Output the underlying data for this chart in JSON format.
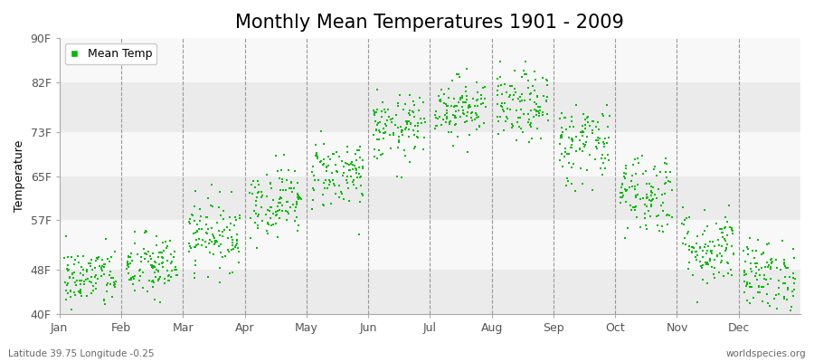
{
  "title": "Monthly Mean Temperatures 1901 - 2009",
  "ylabel": "Temperature",
  "xlabel_labels": [
    "Jan",
    "Feb",
    "Mar",
    "Apr",
    "May",
    "Jun",
    "Jul",
    "Aug",
    "Sep",
    "Oct",
    "Nov",
    "Dec"
  ],
  "ytick_labels": [
    "40F",
    "48F",
    "57F",
    "65F",
    "73F",
    "82F",
    "90F"
  ],
  "ytick_values": [
    40,
    48,
    57,
    65,
    73,
    82,
    90
  ],
  "ylim": [
    40,
    90
  ],
  "xlim": [
    0,
    12
  ],
  "dot_color": "#00bb00",
  "legend_label": "Mean Temp",
  "background_color": "#ffffff",
  "plot_bg_color": "#ffffff",
  "band_color_even": "#ebebeb",
  "band_color_odd": "#f8f8f8",
  "subtitle": "Latitude 39.75 Longitude -0.25",
  "watermark": "worldspecies.org",
  "monthly_means": [
    46.5,
    48.5,
    54.5,
    60.5,
    65.5,
    73.5,
    77.5,
    77.5,
    71.0,
    62.0,
    52.0,
    47.0
  ],
  "monthly_stds": [
    2.8,
    3.0,
    3.2,
    3.2,
    3.2,
    3.0,
    2.8,
    3.2,
    3.8,
    3.8,
    3.5,
    3.2
  ],
  "n_years": 109,
  "title_fontsize": 15,
  "label_fontsize": 9,
  "tick_fontsize": 9
}
